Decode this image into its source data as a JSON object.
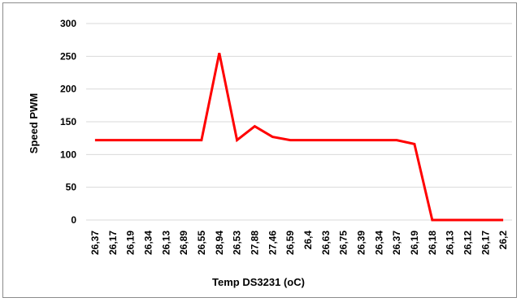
{
  "chart_data": {
    "type": "line",
    "xlabel": "Temp DS3231 (oC)",
    "ylabel": "Speed PWM",
    "ylim": [
      0,
      300
    ],
    "yticks": [
      0,
      50,
      100,
      150,
      200,
      250,
      300
    ],
    "grid": true,
    "categories": [
      "26,37",
      "26,17",
      "26,19",
      "26,34",
      "26,13",
      "26,89",
      "26,55",
      "28,94",
      "26,53",
      "27,88",
      "27,46",
      "26,59",
      "26,4",
      "26,63",
      "26,75",
      "26,39",
      "26,34",
      "26,37",
      "26,19",
      "26,18",
      "26,13",
      "26,12",
      "26,17",
      "26,2"
    ],
    "series": [
      {
        "color": "#ff0000",
        "values": [
          122,
          122,
          122,
          122,
          122,
          122,
          122,
          255,
          122,
          143,
          127,
          122,
          122,
          122,
          122,
          122,
          122,
          122,
          116,
          0,
          0,
          0,
          0,
          0
        ]
      }
    ]
  }
}
